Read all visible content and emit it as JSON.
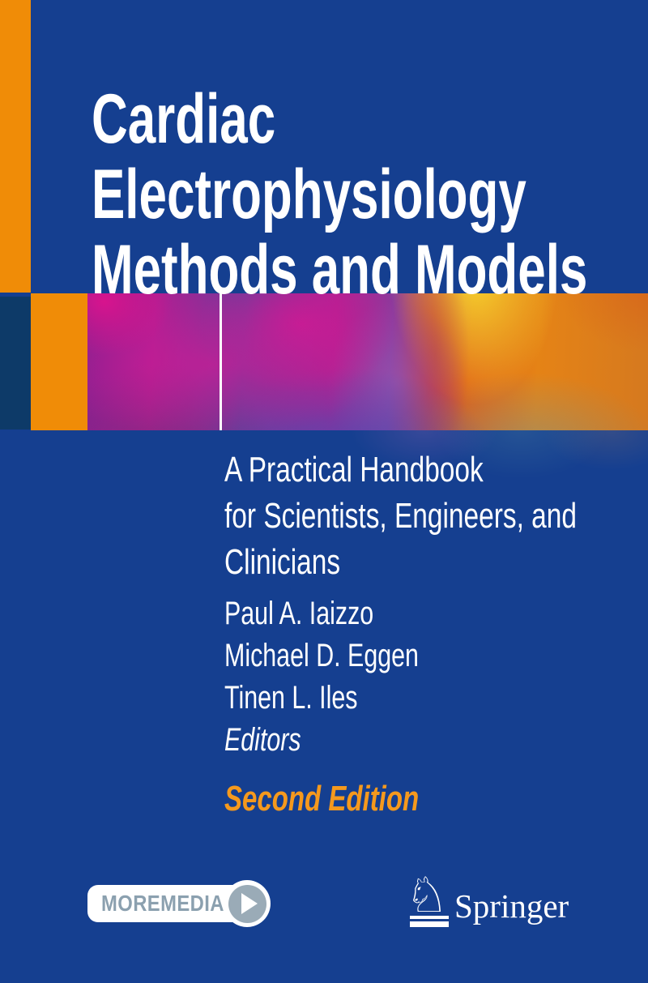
{
  "cover": {
    "title_lines": [
      "Cardiac",
      "Electrophysiology",
      "Methods and Models"
    ],
    "subtitle_lines": [
      "A Practical Handbook",
      "for Scientists, Engineers, and",
      "Clinicians"
    ],
    "editors": [
      "Paul A. Iaizzo",
      "Michael D. Eggen",
      "Tinen L. Iles"
    ],
    "editors_label": "Editors",
    "edition": "Second Edition",
    "moremedia": {
      "label": "MOREMEDIA",
      "icon": "play-icon"
    },
    "publisher": {
      "name": "Springer",
      "horse_glyph": "♘",
      "icon": "springer-horse-icon"
    },
    "colors": {
      "background_blue": "#153f90",
      "accent_orange": "#f08c07",
      "navy": "#0d3a68",
      "edition_orange": "#f5991d",
      "badge_gray": "#9aabb7",
      "text_white": "#ffffff"
    }
  }
}
